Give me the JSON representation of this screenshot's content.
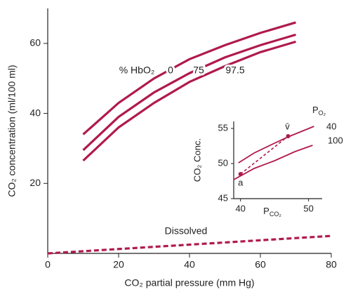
{
  "chart_data": [
    {
      "type": "line",
      "xlabel": "CO₂ partial pressure (mm Hg)",
      "ylabel": "CO₂ concentration (ml/100 ml)",
      "annotation": "% HbO₂",
      "xlim": [
        0,
        80
      ],
      "xticks": [
        0,
        20,
        40,
        60,
        80
      ],
      "ylim": [
        0,
        70
      ],
      "yticks": [
        20,
        40,
        60
      ],
      "series": [
        {
          "name": "0",
          "color": "#b01a4c",
          "x": [
            10,
            20,
            30,
            40,
            50,
            60,
            70
          ],
          "values": [
            34,
            43,
            50,
            55.5,
            59.5,
            63,
            66
          ]
        },
        {
          "name": "75",
          "color": "#b01a4c",
          "x": [
            10,
            20,
            30,
            40,
            50,
            60,
            70
          ],
          "values": [
            29.5,
            39,
            46,
            51.5,
            56,
            59.5,
            62.5
          ]
        },
        {
          "name": "97.5",
          "color": "#b01a4c",
          "x": [
            10,
            20,
            30,
            40,
            50,
            60,
            70
          ],
          "values": [
            26.5,
            36,
            43,
            49,
            53.5,
            57.5,
            60.5
          ]
        },
        {
          "name": "Dissolved",
          "color": "#b01a4c",
          "style": "dashed",
          "x": [
            0,
            80
          ],
          "values": [
            0,
            5
          ]
        }
      ]
    },
    {
      "type": "line",
      "xlabel": "P",
      "xlabel_sub": "CO₂",
      "ylabel": "CO₂ Conc.",
      "legend_title": "P",
      "legend_title_sub": "O₂",
      "xlim": [
        39,
        52
      ],
      "xticks": [
        40,
        50
      ],
      "ylim": [
        45,
        56
      ],
      "yticks": [
        45,
        50,
        55
      ],
      "series": [
        {
          "name": "40",
          "color": "#b01a4c",
          "x": [
            39.7,
            42,
            45,
            47,
            50.8
          ],
          "values": [
            50.1,
            51.5,
            52.9,
            53.8,
            55.3
          ]
        },
        {
          "name": "100",
          "color": "#b01a4c",
          "x": [
            39,
            42,
            45,
            48,
            50.6
          ],
          "values": [
            47.7,
            49.3,
            50.4,
            51.7,
            52.6
          ]
        }
      ],
      "points": [
        {
          "label": "a",
          "x": 40,
          "y": 48.5
        },
        {
          "label": "v̄",
          "x": 47,
          "y": 53.9
        }
      ]
    }
  ]
}
